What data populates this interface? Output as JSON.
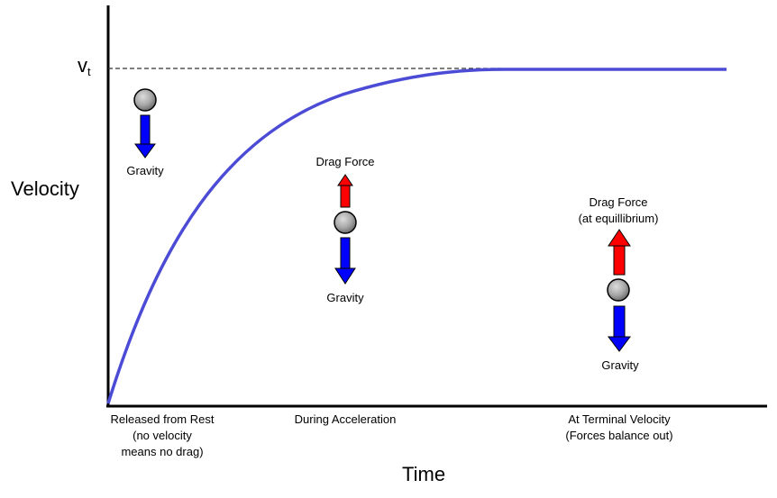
{
  "axes": {
    "y_label": "Velocity",
    "x_label": "Time",
    "terminal_velocity": {
      "symbol": "v",
      "subscript": "t"
    }
  },
  "stages": [
    {
      "caption_lines": [
        "Released from Rest",
        "(no velocity",
        "means no drag)"
      ],
      "forces": {
        "up": null,
        "down": "Gravity"
      }
    },
    {
      "caption_lines": [
        "During Acceleration"
      ],
      "forces": {
        "up": "Drag Force",
        "down": "Gravity"
      }
    },
    {
      "caption_lines": [
        "At Terminal Velocity",
        "(Forces balance out)"
      ],
      "forces": {
        "up_lines": [
          "Drag Force",
          "(at equillibrium)"
        ],
        "down": "Gravity"
      }
    }
  ],
  "colors": {
    "curve": "#4b4bd6",
    "drag_arrow": "#ff0000",
    "gravity_arrow": "#0000ff",
    "axis": "#000000",
    "dashed_line": "#333333"
  }
}
